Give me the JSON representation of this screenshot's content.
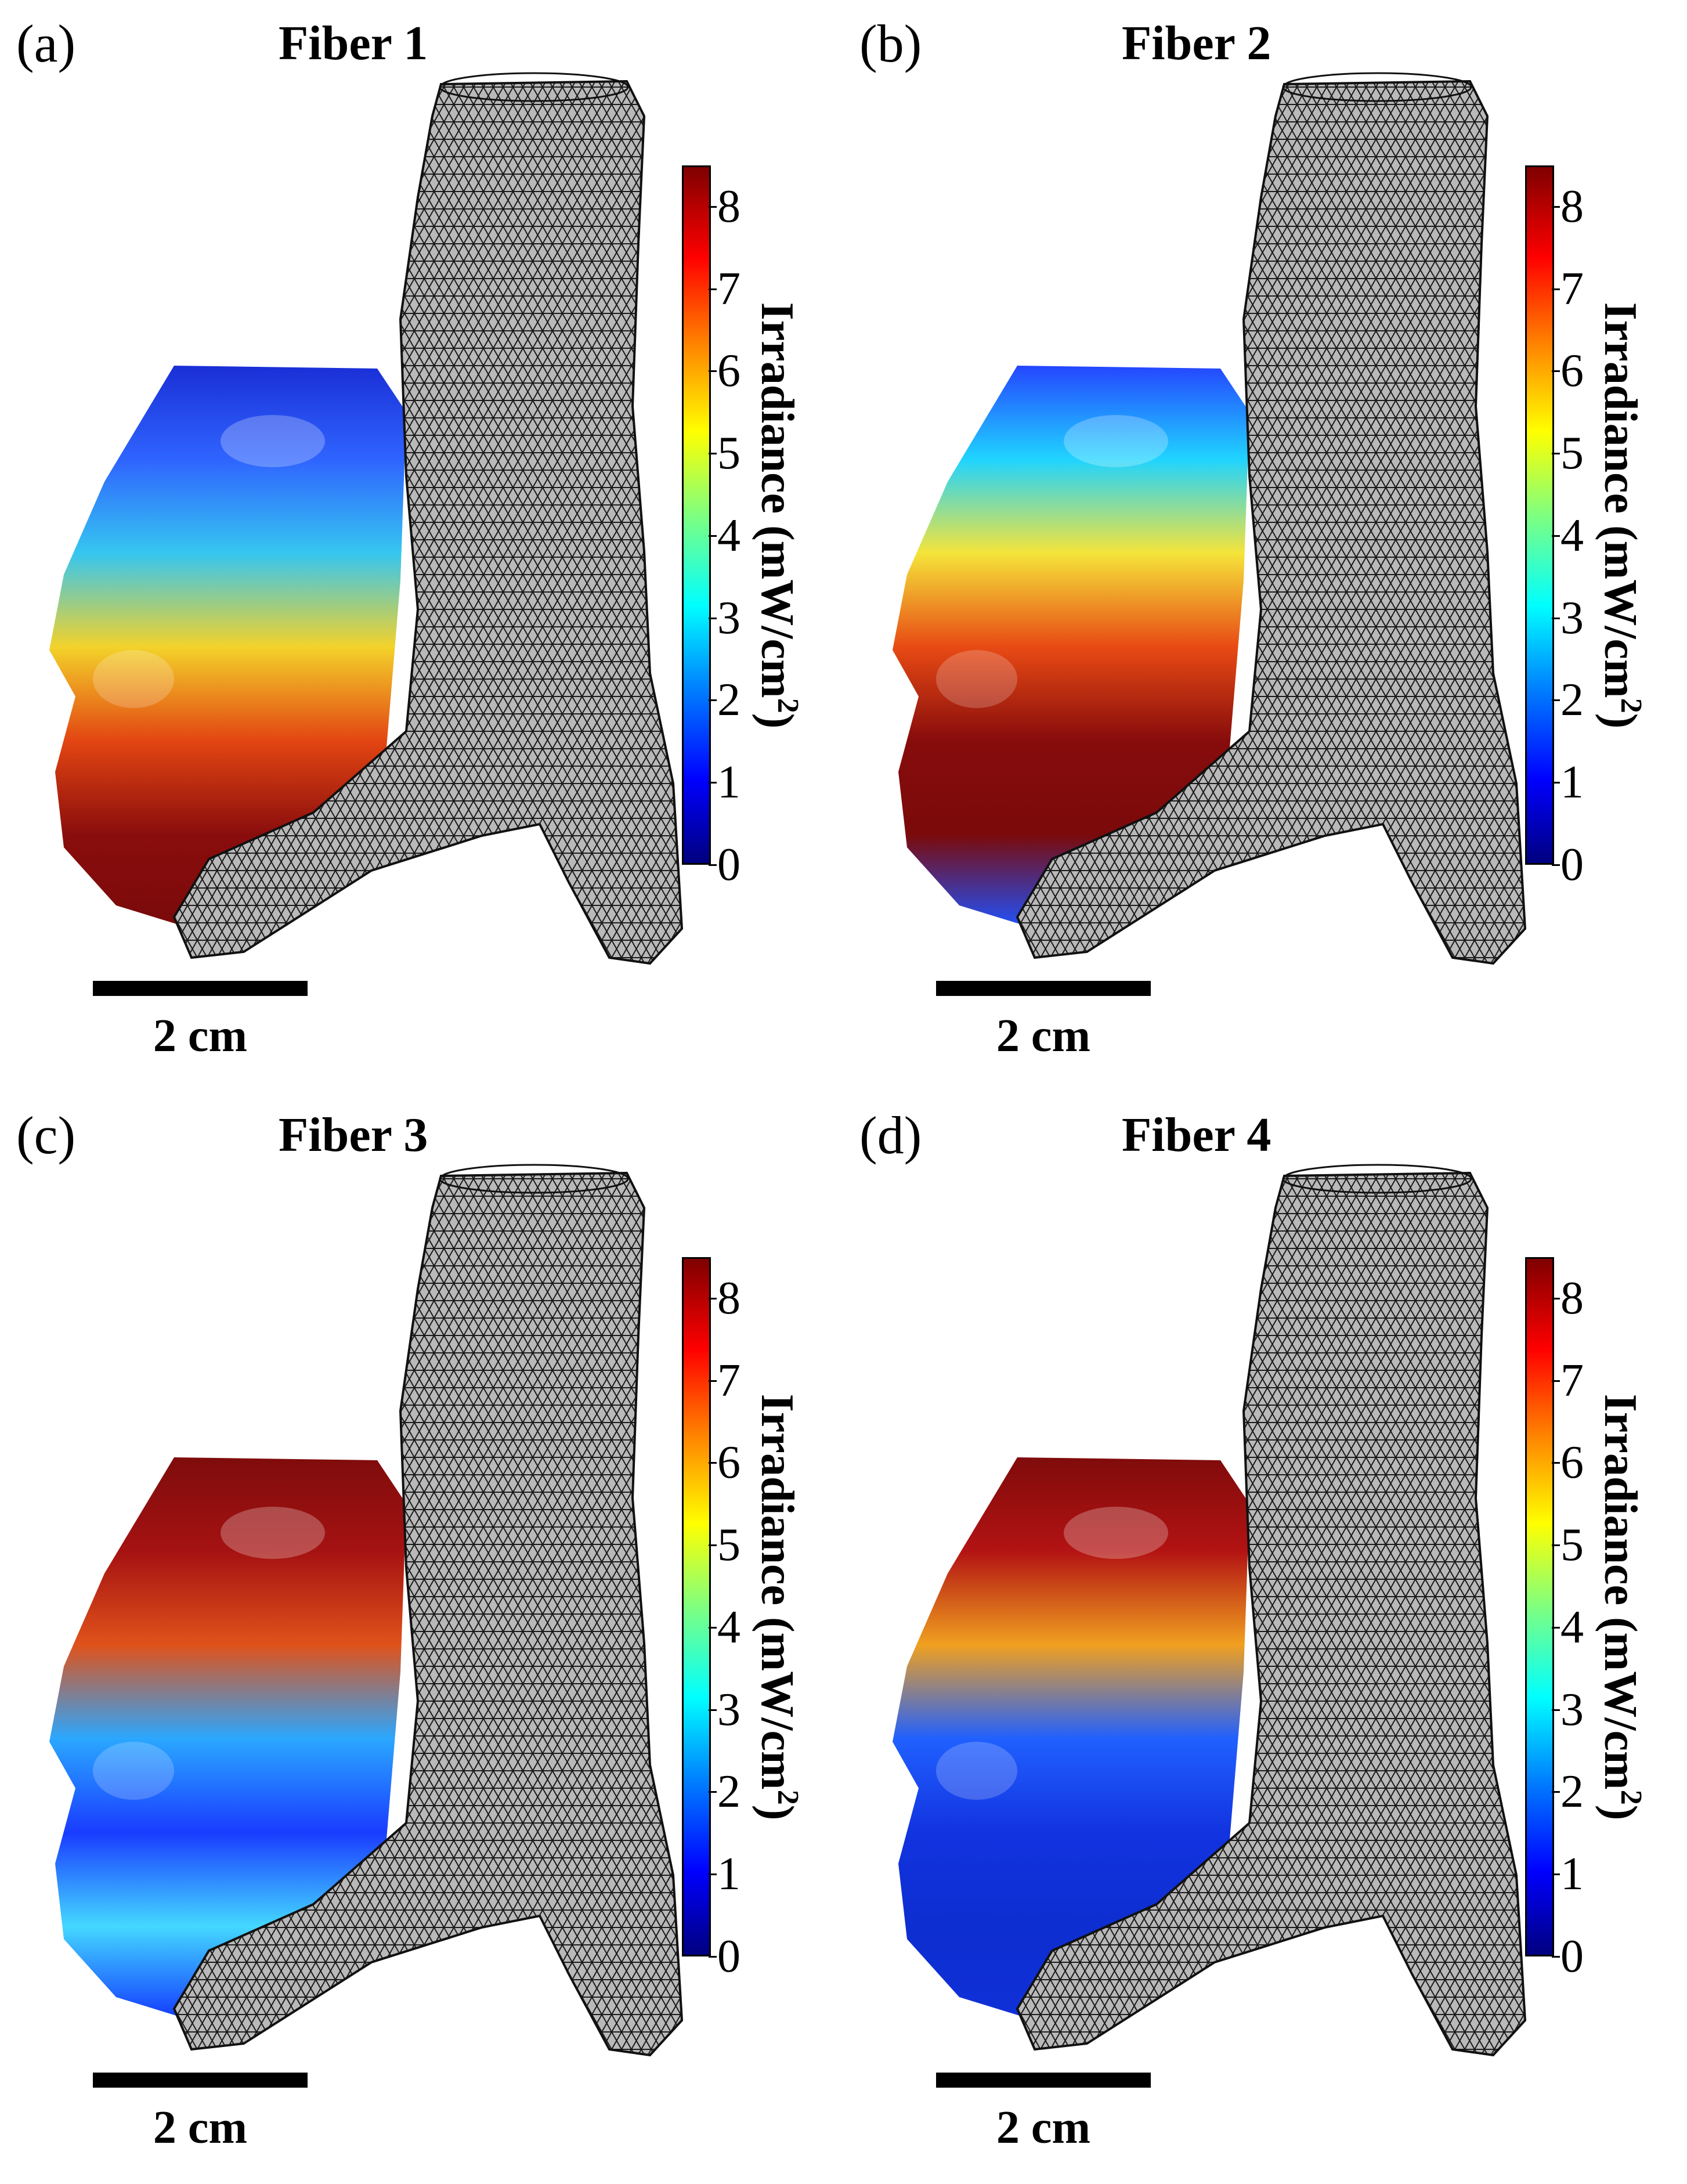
{
  "panels": [
    {
      "label": "(a)",
      "title": "Fiber 1",
      "colors": [
        "#1a2fd6",
        "#2f64ff",
        "#36c6f0",
        "#f3d22a",
        "#e34512",
        "#8a0d0d",
        "#7a0a0a"
      ]
    },
    {
      "label": "(b)",
      "title": "Fiber 2",
      "colors": [
        "#2446ff",
        "#20d4ff",
        "#f5e43a",
        "#e84a14",
        "#870c0c",
        "#7b0a0a",
        "#1f52ff"
      ]
    },
    {
      "label": "(c)",
      "title": "Fiber 3",
      "colors": [
        "#7f0c0c",
        "#a51212",
        "#e0521a",
        "#2aa7ff",
        "#1a3cff",
        "#44d8ff",
        "#1338ff"
      ]
    },
    {
      "label": "(d)",
      "title": "Fiber 4",
      "colors": [
        "#800b0b",
        "#b31313",
        "#f0a020",
        "#2060ff",
        "#1233e0",
        "#0d2ed0",
        "#1030d8"
      ]
    }
  ],
  "colorbar": {
    "label_text": "Irradiance (mW/cm",
    "label_sup": "2",
    "label_close": ")",
    "ticks": [
      "8",
      "7",
      "6",
      "5",
      "4",
      "3",
      "2",
      "1",
      "0"
    ],
    "range": [
      0,
      8.5
    ]
  },
  "scale_bar": {
    "label": "2 cm"
  },
  "colors": {
    "mesh_fill": "#b9b9b9",
    "mesh_line": "#1a1a1a",
    "background": "#ffffff"
  }
}
